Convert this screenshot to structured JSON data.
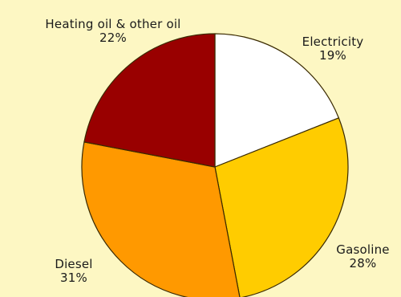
{
  "chart_data": {
    "type": "pie",
    "title": "",
    "slices": [
      {
        "label": "Electricity",
        "value": 19,
        "pct_text": "19%",
        "color": "#ffffff"
      },
      {
        "label": "Gasoline",
        "value": 28,
        "pct_text": "28%",
        "color": "#ffcc00"
      },
      {
        "label": "Diesel",
        "value": 31,
        "pct_text": "31%",
        "color": "#ff9900"
      },
      {
        "label": "Heating oil & other oil",
        "value": 22,
        "pct_text": "22%",
        "color": "#990000"
      }
    ],
    "start": "top (12 o'clock), clockwise",
    "legend": "none (labels placed beside slices)"
  },
  "colors": {
    "background": "#fdf7c3",
    "outline": "#3a2a00"
  }
}
